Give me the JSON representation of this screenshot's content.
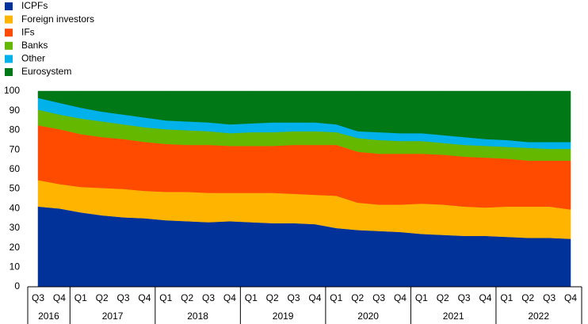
{
  "chart_data": {
    "type": "stacked_area",
    "categories": [
      "Q3",
      "Q4",
      "Q1",
      "Q2",
      "Q3",
      "Q4",
      "Q1",
      "Q2",
      "Q3",
      "Q4",
      "Q1",
      "Q2",
      "Q3",
      "Q4",
      "Q1",
      "Q2",
      "Q3",
      "Q4",
      "Q1",
      "Q2",
      "Q3",
      "Q4",
      "Q1",
      "Q2",
      "Q3",
      "Q4"
    ],
    "groups": [
      "2016",
      "2017",
      "2018",
      "2019",
      "2020",
      "2021",
      "2022"
    ],
    "series": [
      {
        "name": "ICPFs",
        "color": "#003299",
        "values": [
          41,
          40,
          38,
          36.5,
          35.5,
          35,
          34,
          33.5,
          33,
          33.5,
          33,
          32.5,
          32.5,
          32,
          30,
          29,
          28.5,
          28,
          27,
          26.5,
          26,
          26,
          25.5,
          25,
          25,
          24.5
        ]
      },
      {
        "name": "Foreign investors",
        "color": "#ffb400",
        "values": [
          13.5,
          12.5,
          13,
          14,
          14.5,
          14,
          14.5,
          15,
          15,
          14.5,
          15,
          15.5,
          15,
          15,
          16.5,
          14,
          13.5,
          14,
          15.5,
          15.5,
          15,
          14.5,
          15.5,
          16,
          16,
          15
        ]
      },
      {
        "name": "IFs",
        "color": "#ff4b00",
        "values": [
          28,
          28,
          27,
          26,
          25.5,
          25,
          24.5,
          24,
          24.5,
          24,
          24,
          24,
          25,
          25.5,
          26,
          26,
          26,
          26,
          25.5,
          25.5,
          25.5,
          25.5,
          24.5,
          23.5,
          23.5,
          25
        ]
      },
      {
        "name": "Banks",
        "color": "#65b800",
        "values": [
          8,
          7.5,
          8,
          8,
          7.5,
          7.5,
          7.5,
          7.5,
          7,
          6.5,
          7,
          7,
          7,
          7,
          6.5,
          7,
          7,
          6.5,
          6.5,
          6,
          6,
          6,
          6,
          6.5,
          6,
          6
        ]
      },
      {
        "name": "Other",
        "color": "#00b1ea",
        "values": [
          6,
          6,
          5.5,
          5,
          5,
          5,
          4.5,
          4.5,
          4.5,
          4.5,
          4.5,
          5,
          4.5,
          4.5,
          4,
          3.5,
          4,
          4,
          4,
          4,
          4,
          3.5,
          3.5,
          3,
          3.5,
          3.5
        ]
      },
      {
        "name": "Eurosystem",
        "color": "#007816",
        "values": [
          3.5,
          6,
          8.5,
          10.5,
          12,
          13.5,
          15,
          15.5,
          16,
          17,
          16.5,
          16,
          16,
          16,
          17,
          20.5,
          21,
          21.5,
          21.5,
          22.5,
          23.5,
          24.5,
          25,
          26,
          26,
          26
        ]
      }
    ],
    "ylim": [
      0,
      100
    ],
    "yticks": [
      0,
      10,
      20,
      30,
      40,
      50,
      60,
      70,
      80,
      90,
      100
    ],
    "grid": false,
    "legend": "top-left"
  }
}
